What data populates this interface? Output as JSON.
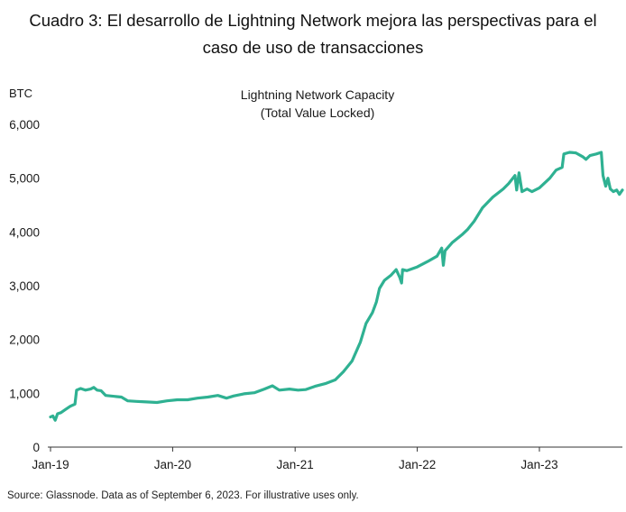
{
  "title": "Cuadro 3: El desarrollo de Lightning Network mejora las perspectivas para el caso de uso de transacciones",
  "footer": "Source: Glassnode. Data as of September 6, 2023. For illustrative uses only.",
  "colors": {
    "line": "#2fb192",
    "axis": "#333333",
    "text": "#1a1a1a"
  },
  "chart_data": {
    "type": "line",
    "title": "Lightning Network Capacity",
    "subtitle": "(Total Value Locked)",
    "ylabel": "BTC",
    "xlabel": "",
    "ylim": [
      0,
      6000
    ],
    "xlim": [
      "2019-01-01",
      "2023-09-06"
    ],
    "grid": false,
    "x_ticks": [
      "Jan-19",
      "Jan-20",
      "Jan-21",
      "Jan-22",
      "Jan-23"
    ],
    "y_ticks": [
      "0",
      "1,000",
      "2,000",
      "3,000",
      "4,000",
      "5,000",
      "6,000"
    ],
    "series": [
      {
        "points": [
          [
            "2019-01-01",
            560
          ],
          [
            "2019-01-08",
            580
          ],
          [
            "2019-01-15",
            500
          ],
          [
            "2019-01-22",
            620
          ],
          [
            "2019-02-01",
            640
          ],
          [
            "2019-02-15",
            700
          ],
          [
            "2019-03-01",
            760
          ],
          [
            "2019-03-15",
            800
          ],
          [
            "2019-03-20",
            1060
          ],
          [
            "2019-04-01",
            1090
          ],
          [
            "2019-04-15",
            1060
          ],
          [
            "2019-05-01",
            1080
          ],
          [
            "2019-05-10",
            1110
          ],
          [
            "2019-05-20",
            1060
          ],
          [
            "2019-06-01",
            1050
          ],
          [
            "2019-06-15",
            960
          ],
          [
            "2019-07-01",
            950
          ],
          [
            "2019-08-01",
            930
          ],
          [
            "2019-08-20",
            860
          ],
          [
            "2019-09-15",
            850
          ],
          [
            "2019-10-15",
            840
          ],
          [
            "2019-11-15",
            830
          ],
          [
            "2019-12-15",
            860
          ],
          [
            "2020-01-15",
            880
          ],
          [
            "2020-02-15",
            880
          ],
          [
            "2020-03-15",
            910
          ],
          [
            "2020-04-15",
            930
          ],
          [
            "2020-05-15",
            960
          ],
          [
            "2020-06-10",
            910
          ],
          [
            "2020-07-01",
            950
          ],
          [
            "2020-08-01",
            990
          ],
          [
            "2020-09-01",
            1010
          ],
          [
            "2020-10-01",
            1080
          ],
          [
            "2020-10-25",
            1140
          ],
          [
            "2020-11-15",
            1060
          ],
          [
            "2020-12-15",
            1080
          ],
          [
            "2021-01-10",
            1060
          ],
          [
            "2021-02-01",
            1070
          ],
          [
            "2021-03-01",
            1130
          ],
          [
            "2021-04-01",
            1180
          ],
          [
            "2021-05-01",
            1250
          ],
          [
            "2021-05-25",
            1400
          ],
          [
            "2021-06-20",
            1600
          ],
          [
            "2021-07-15",
            1950
          ],
          [
            "2021-08-01",
            2300
          ],
          [
            "2021-08-20",
            2500
          ],
          [
            "2021-09-01",
            2700
          ],
          [
            "2021-09-10",
            2950
          ],
          [
            "2021-09-25",
            3100
          ],
          [
            "2021-10-15",
            3200
          ],
          [
            "2021-10-30",
            3300
          ],
          [
            "2021-11-10",
            3150
          ],
          [
            "2021-11-15",
            3050
          ],
          [
            "2021-11-18",
            3300
          ],
          [
            "2021-12-01",
            3280
          ],
          [
            "2022-01-01",
            3350
          ],
          [
            "2022-02-01",
            3450
          ],
          [
            "2022-03-01",
            3550
          ],
          [
            "2022-03-15",
            3700
          ],
          [
            "2022-03-20",
            3380
          ],
          [
            "2022-03-25",
            3650
          ],
          [
            "2022-04-15",
            3800
          ],
          [
            "2022-05-15",
            3950
          ],
          [
            "2022-06-01",
            4050
          ],
          [
            "2022-06-20",
            4200
          ],
          [
            "2022-07-15",
            4450
          ],
          [
            "2022-08-15",
            4650
          ],
          [
            "2022-09-15",
            4800
          ],
          [
            "2022-10-01",
            4900
          ],
          [
            "2022-10-20",
            5050
          ],
          [
            "2022-10-25",
            4780
          ],
          [
            "2022-11-01",
            5100
          ],
          [
            "2022-11-10",
            4750
          ],
          [
            "2022-11-25",
            4800
          ],
          [
            "2022-12-10",
            4750
          ],
          [
            "2023-01-01",
            4820
          ],
          [
            "2023-01-15",
            4900
          ],
          [
            "2023-02-01",
            5000
          ],
          [
            "2023-02-20",
            5150
          ],
          [
            "2023-03-10",
            5200
          ],
          [
            "2023-03-15",
            5450
          ],
          [
            "2023-04-01",
            5480
          ],
          [
            "2023-04-20",
            5470
          ],
          [
            "2023-05-10",
            5400
          ],
          [
            "2023-05-20",
            5350
          ],
          [
            "2023-06-01",
            5420
          ],
          [
            "2023-06-20",
            5450
          ],
          [
            "2023-07-05",
            5480
          ],
          [
            "2023-07-10",
            5050
          ],
          [
            "2023-07-18",
            4850
          ],
          [
            "2023-07-25",
            5000
          ],
          [
            "2023-08-01",
            4800
          ],
          [
            "2023-08-10",
            4750
          ],
          [
            "2023-08-20",
            4780
          ],
          [
            "2023-08-28",
            4700
          ],
          [
            "2023-09-06",
            4780
          ]
        ]
      }
    ]
  }
}
